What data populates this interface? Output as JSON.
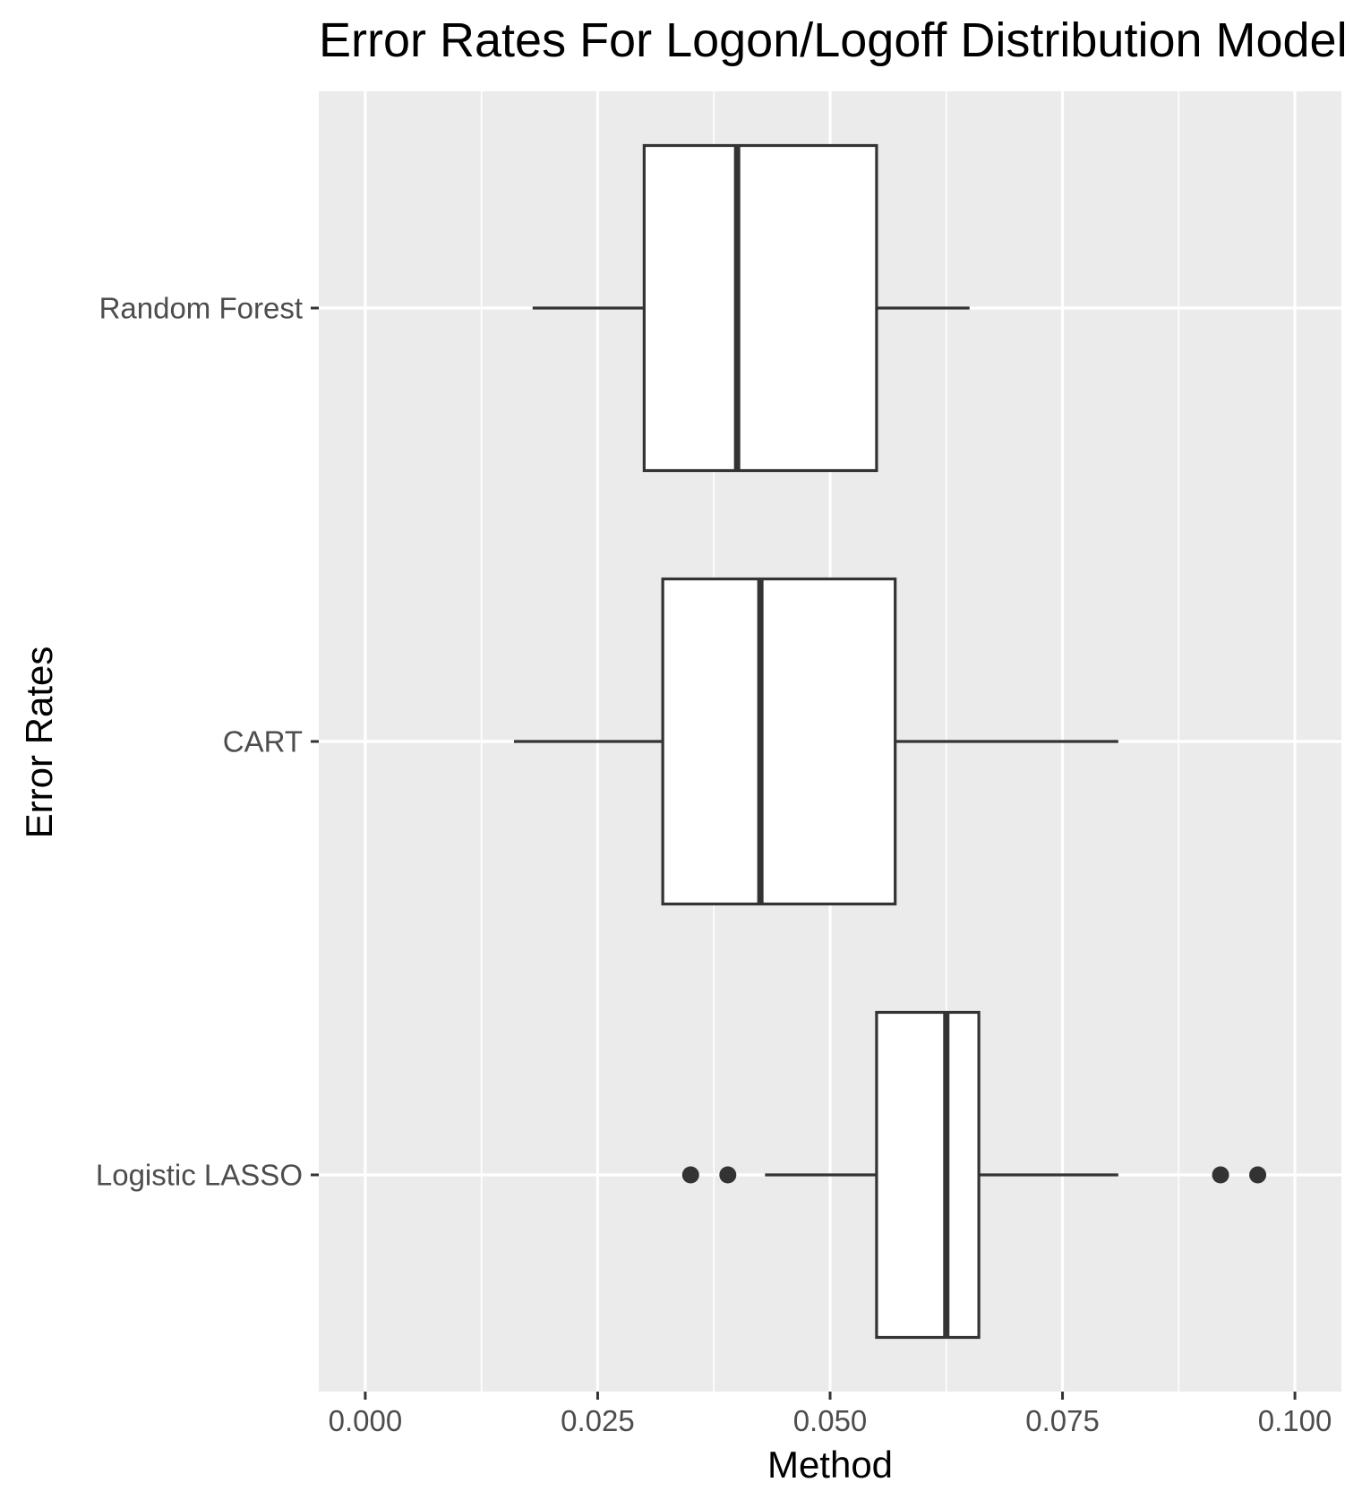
{
  "chart_data": {
    "type": "boxplot",
    "orientation": "horizontal",
    "title": "Error Rates For Logon/Logoff Distribution Model",
    "xlabel": "Method",
    "ylabel": "Error Rates",
    "xlim": [
      -0.005,
      0.105
    ],
    "x_ticks": [
      0.0,
      0.025,
      0.05,
      0.075,
      0.1
    ],
    "x_tick_labels": [
      "0.000",
      "0.025",
      "0.050",
      "0.075",
      "0.100"
    ],
    "categories": [
      "Random Forest",
      "CART",
      "Logistic LASSO"
    ],
    "boxes": [
      {
        "category": "Random Forest",
        "whisker_low": 0.018,
        "q1": 0.03,
        "median": 0.04,
        "q3": 0.055,
        "whisker_high": 0.065,
        "outliers": []
      },
      {
        "category": "CART",
        "whisker_low": 0.016,
        "q1": 0.032,
        "median": 0.0425,
        "q3": 0.057,
        "whisker_high": 0.081,
        "outliers": []
      },
      {
        "category": "Logistic LASSO",
        "whisker_low": 0.043,
        "q1": 0.055,
        "median": 0.0625,
        "q3": 0.066,
        "whisker_high": 0.081,
        "outliers": [
          0.035,
          0.039,
          0.092,
          0.096
        ]
      }
    ],
    "grid": true,
    "colors": {
      "panel_background": "#ebebeb",
      "grid_major": "#ffffff",
      "box_fill": "#ffffff",
      "box_line": "#333333",
      "tick_label": "#4d4d4d",
      "title": "#000000"
    }
  }
}
